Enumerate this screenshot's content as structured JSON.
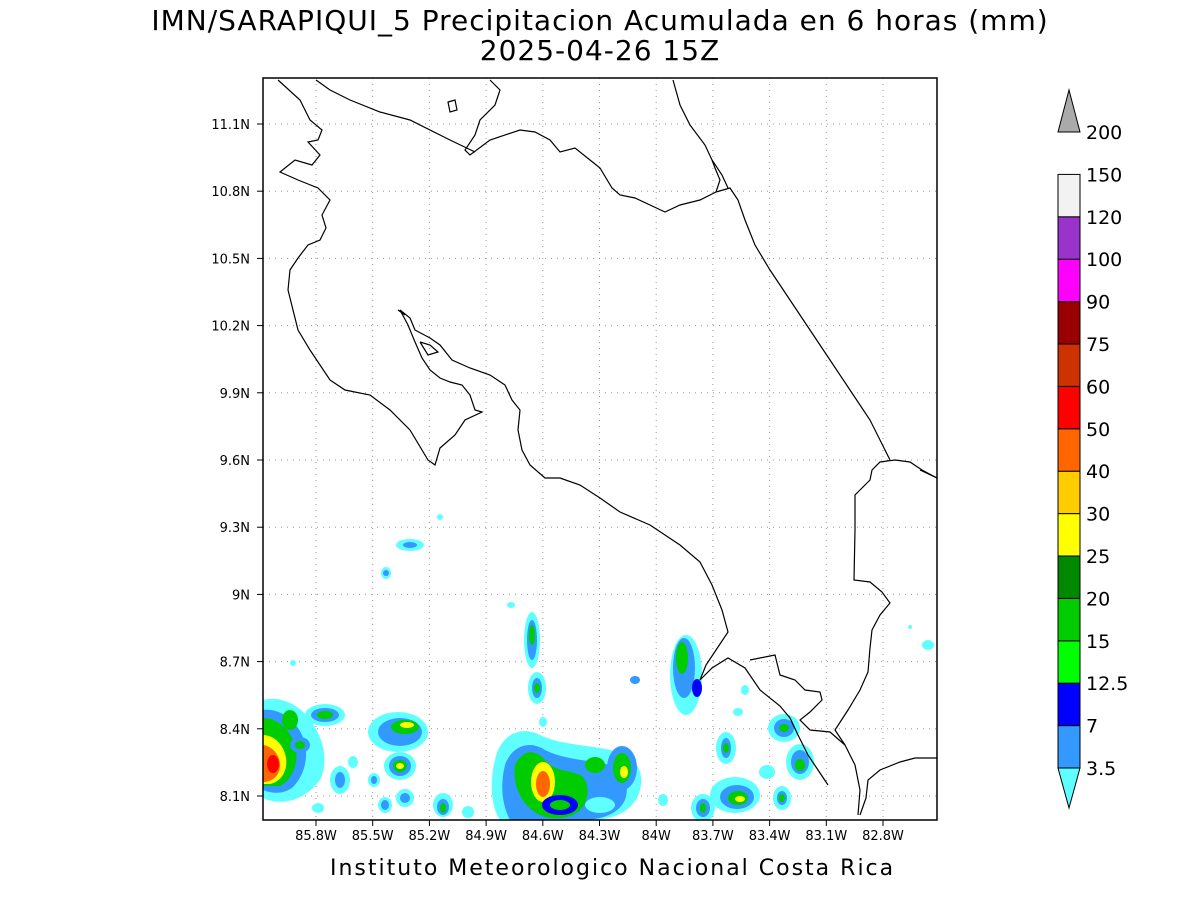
{
  "title": "IMN/SARAPIQUI_5 Precipitacion Acumulada en 6 horas (mm)",
  "subtitle": "2025-04-26 15Z",
  "footer": "Instituto Meteorologico Nacional Costa Rica",
  "lat_labels": [
    "11.1N",
    "10.8N",
    "10.5N",
    "10.2N",
    "9.9N",
    "9.6N",
    "9.3N",
    "9N",
    "8.7N",
    "8.4N",
    "8.1N"
  ],
  "lon_labels": [
    "85.8W",
    "85.5W",
    "85.2W",
    "84.9W",
    "84.6W",
    "84.3W",
    "84W",
    "83.7W",
    "83.4W",
    "83.1W",
    "82.8W"
  ],
  "colorbar": {
    "labels": [
      "3.5",
      "7",
      "12.5",
      "15",
      "20",
      "25",
      "30",
      "40",
      "50",
      "60",
      "75",
      "90",
      "100",
      "120",
      "150",
      "200"
    ],
    "colors": [
      "#60ffff",
      "#3399ff",
      "#0000ff",
      "#00ff00",
      "#00cc00",
      "#008800",
      "#ffff00",
      "#ffcc00",
      "#ff6600",
      "#ff0000",
      "#cc3300",
      "#990000",
      "#ff00ff",
      "#9933cc",
      "#f2f2f2",
      "#aaaaaa"
    ]
  },
  "map": {
    "region": "Costa Rica",
    "lat_range": [
      8.0,
      11.3
    ],
    "lon_range": [
      -85.95,
      -82.95
    ]
  }
}
